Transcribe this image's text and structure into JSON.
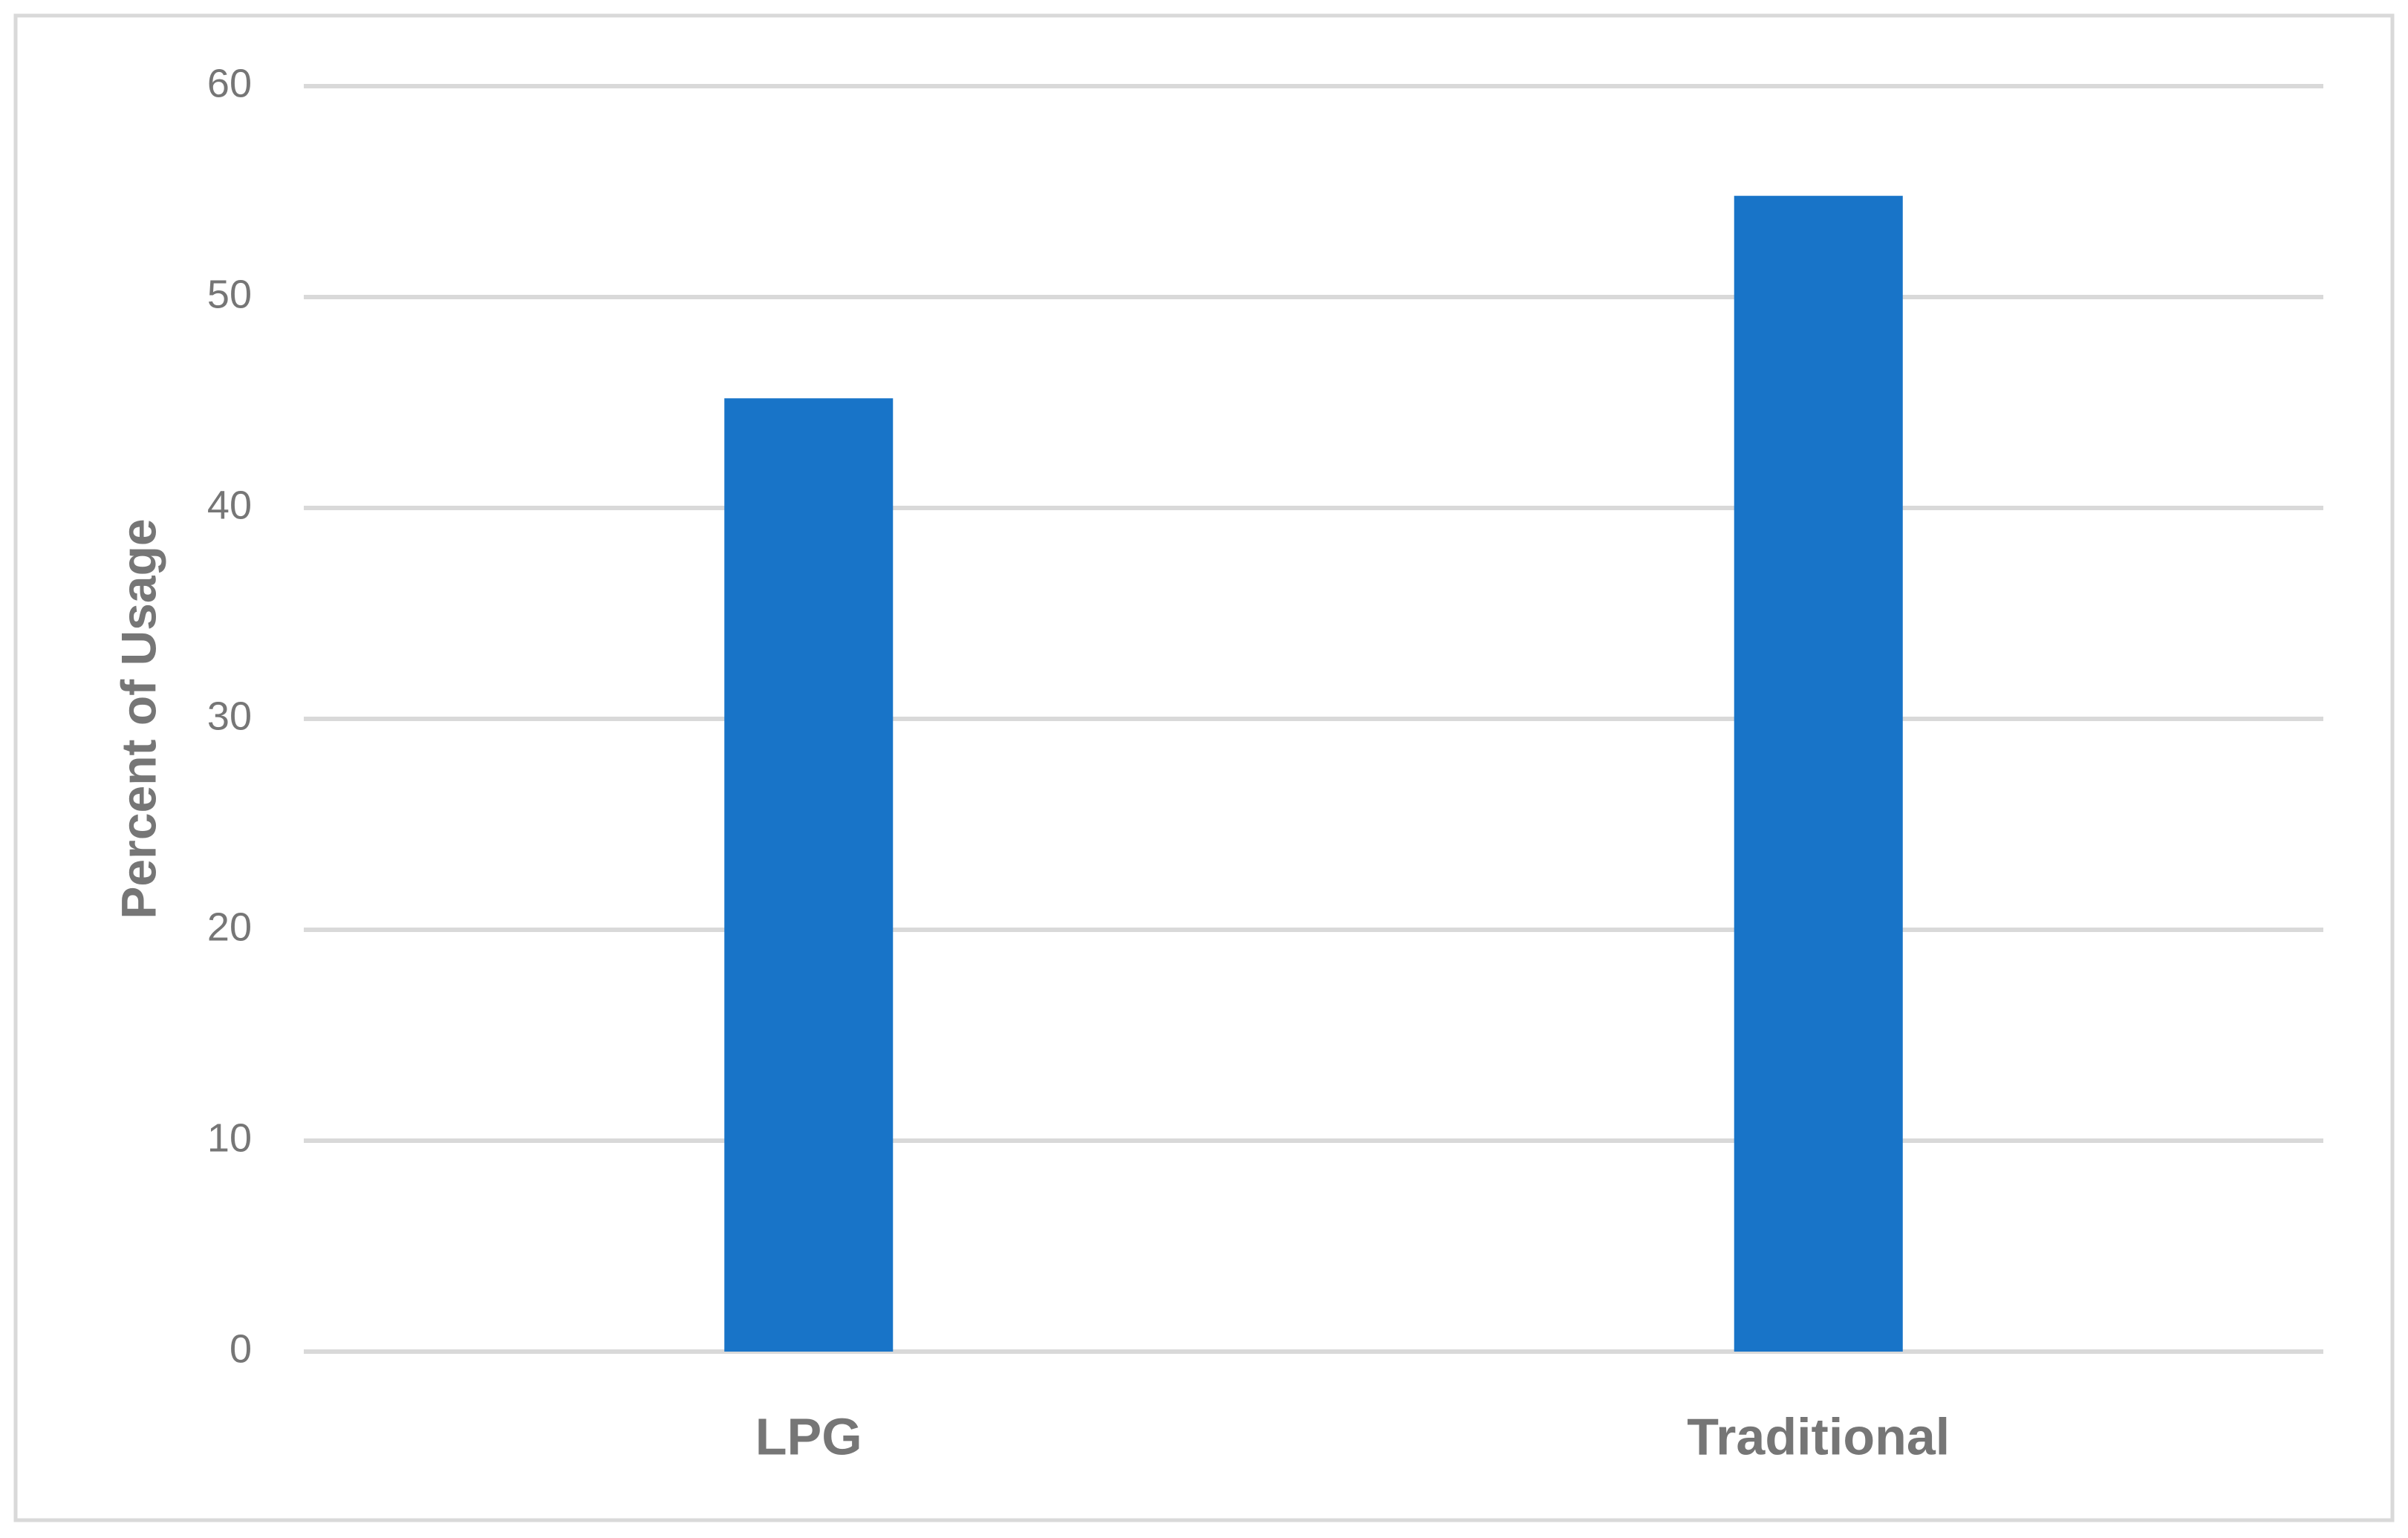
{
  "chart_data": {
    "type": "bar",
    "y_label": "Percent of Usage",
    "categories": [
      "LPG",
      "Traditional"
    ],
    "values": [
      45.2,
      54.8
    ],
    "color": "#1874c8",
    "ylim": [
      0,
      60
    ],
    "yticks": [
      0,
      10,
      20,
      30,
      40,
      50,
      60
    ],
    "grid": true
  }
}
